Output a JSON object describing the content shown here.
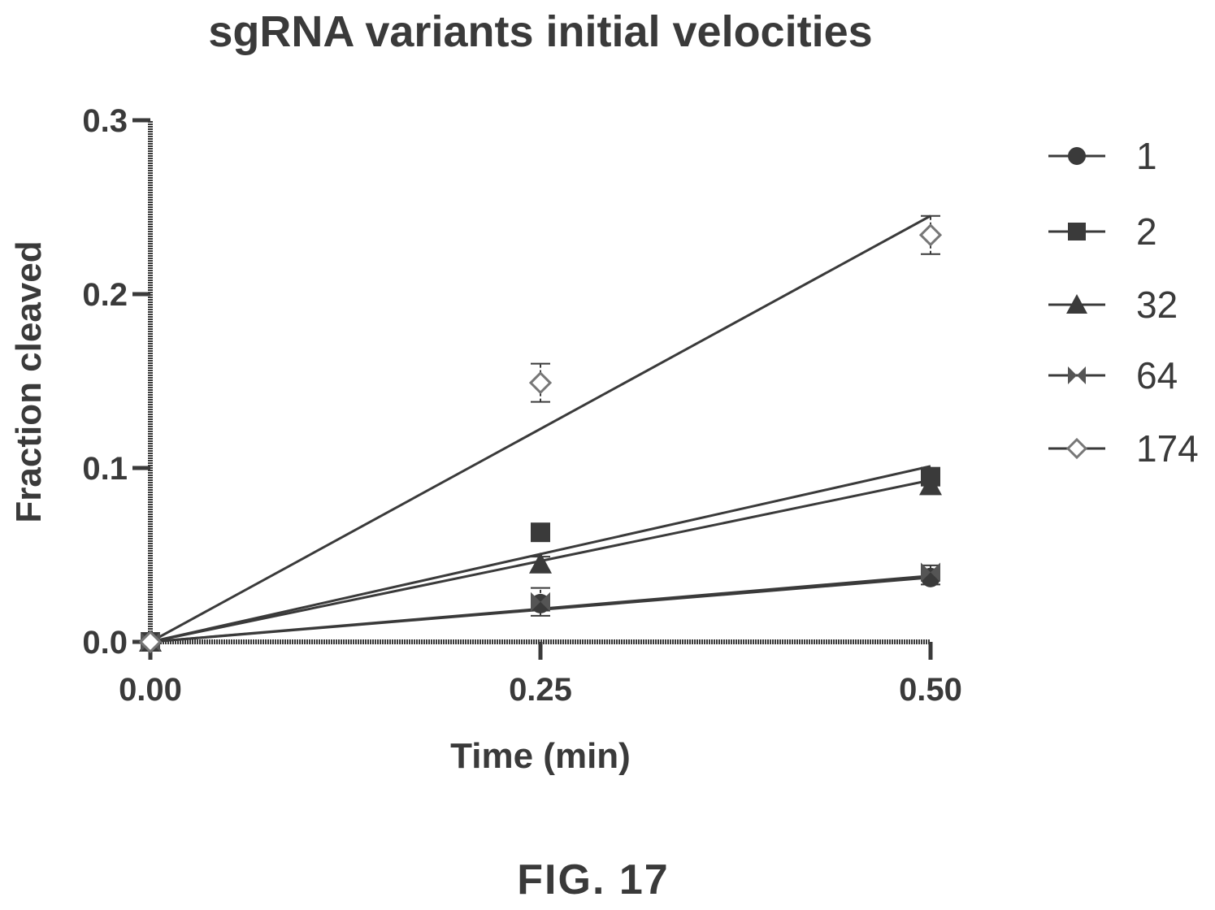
{
  "chart_data": {
    "type": "line",
    "title": "sgRNA variants initial velocities",
    "xlabel": "Time (min)",
    "ylabel": "Fraction cleaved",
    "x": [
      0.0,
      0.25,
      0.5
    ],
    "x_tick_labels": [
      "0.00",
      "0.25",
      "0.50"
    ],
    "y_ticks": [
      0.0,
      0.1,
      0.2,
      0.3
    ],
    "y_tick_labels": [
      "0.0",
      "0.1",
      "0.2",
      "0.3"
    ],
    "xlim": [
      0,
      0.5
    ],
    "ylim": [
      0,
      0.3
    ],
    "legend_position": "right",
    "series": [
      {
        "name": "1",
        "marker": "circle",
        "points": [
          {
            "x": 0,
            "y": 0,
            "err": 0
          },
          {
            "x": 0.25,
            "y": 0.022,
            "err": 0.004
          },
          {
            "x": 0.5,
            "y": 0.037,
            "err": 0.004
          }
        ],
        "fit": [
          [
            0,
            0
          ],
          [
            0.5,
            0.037
          ]
        ]
      },
      {
        "name": "2",
        "marker": "square",
        "points": [
          {
            "x": 0,
            "y": 0,
            "err": 0
          },
          {
            "x": 0.25,
            "y": 0.063,
            "err": 0.005
          },
          {
            "x": 0.5,
            "y": 0.095,
            "err": 0.005
          }
        ],
        "fit": [
          [
            0,
            0
          ],
          [
            0.5,
            0.101
          ]
        ]
      },
      {
        "name": "32",
        "marker": "triangle",
        "points": [
          {
            "x": 0,
            "y": 0,
            "err": 0
          },
          {
            "x": 0.25,
            "y": 0.045,
            "err": 0.004
          },
          {
            "x": 0.5,
            "y": 0.09,
            "err": 0.005
          }
        ],
        "fit": [
          [
            0,
            0
          ],
          [
            0.5,
            0.093
          ]
        ]
      },
      {
        "name": "64",
        "marker": "bowtie",
        "points": [
          {
            "x": 0,
            "y": 0,
            "err": 0
          },
          {
            "x": 0.25,
            "y": 0.023,
            "err": 0.008
          },
          {
            "x": 0.5,
            "y": 0.04,
            "err": 0.004
          }
        ],
        "fit": [
          [
            0,
            0
          ],
          [
            0.5,
            0.038
          ]
        ]
      },
      {
        "name": "174",
        "marker": "diamond",
        "points": [
          {
            "x": 0,
            "y": 0,
            "err": 0
          },
          {
            "x": 0.25,
            "y": 0.149,
            "err": 0.011
          },
          {
            "x": 0.5,
            "y": 0.234,
            "err": 0.011
          }
        ],
        "fit": [
          [
            0,
            0
          ],
          [
            0.5,
            0.245
          ]
        ]
      }
    ]
  },
  "figure_caption": "FIG. 17",
  "colors": {
    "ink": "#3a3a3a",
    "background": "#ffffff"
  }
}
